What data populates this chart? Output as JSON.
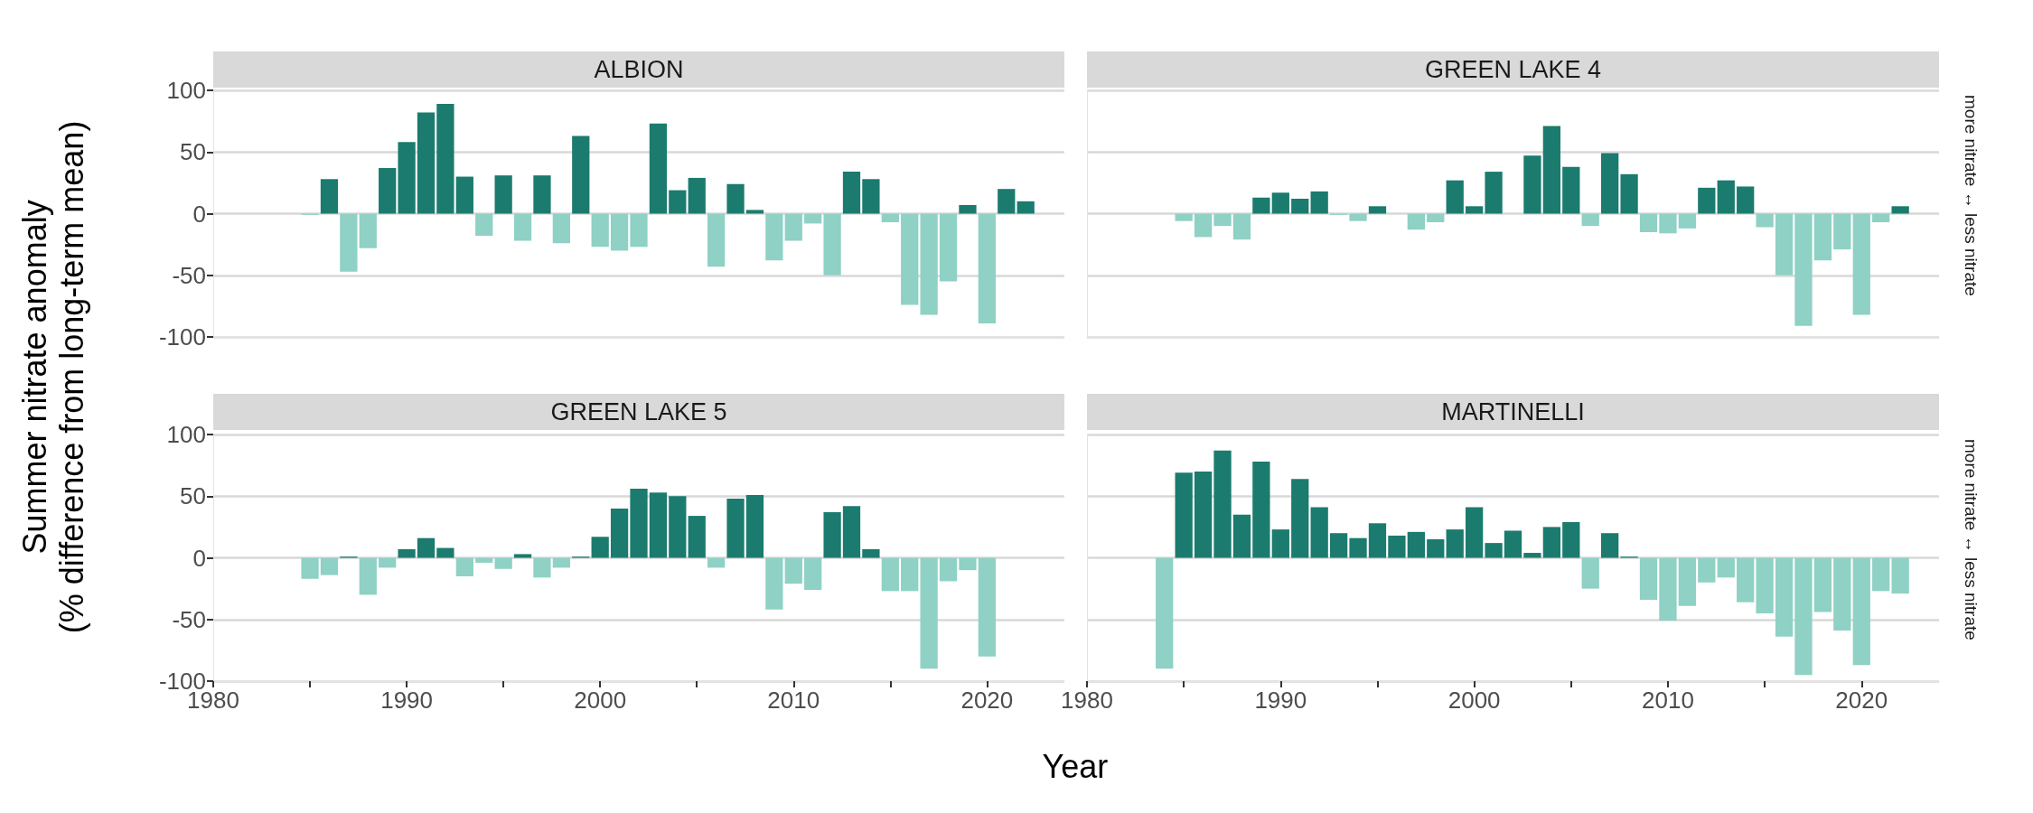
{
  "chart_data": [
    {
      "type": "bar",
      "title": "ALBION",
      "ylabel": "Summer nitrate anomaly\n(% difference from long-term mean)",
      "x": [
        1985,
        1986,
        1987,
        1988,
        1989,
        1990,
        1991,
        1992,
        1993,
        1994,
        1995,
        1996,
        1997,
        1998,
        1999,
        2000,
        2001,
        2002,
        2003,
        2004,
        2005,
        2006,
        2007,
        2008,
        2009,
        2010,
        2011,
        2012,
        2013,
        2014,
        2015,
        2016,
        2017,
        2018,
        2019,
        2020,
        2021,
        2022
      ],
      "values": [
        -1,
        28,
        -47,
        -28,
        37,
        58,
        82,
        89,
        30,
        -18,
        31,
        -22,
        31,
        -24,
        63,
        -27,
        -30,
        -27,
        73,
        19,
        29,
        -43,
        24,
        3,
        -38,
        -22,
        -8,
        -50,
        34,
        28,
        -7,
        -74,
        -82,
        -55,
        7,
        -89,
        20,
        10
      ],
      "colors": [
        "#8fd1c4",
        "#1b7b6e",
        "#8fd1c4",
        "#8fd1c4",
        "#1b7b6e",
        "#1b7b6e",
        "#1b7b6e",
        "#1b7b6e",
        "#1b7b6e",
        "#8fd1c4",
        "#1b7b6e",
        "#8fd1c4",
        "#1b7b6e",
        "#8fd1c4",
        "#1b7b6e",
        "#8fd1c4",
        "#8fd1c4",
        "#8fd1c4",
        "#1b7b6e",
        "#1b7b6e",
        "#1b7b6e",
        "#8fd1c4",
        "#1b7b6e",
        "#1b7b6e",
        "#8fd1c4",
        "#8fd1c4",
        "#8fd1c4",
        "#8fd1c4",
        "#1b7b6e",
        "#1b7b6e",
        "#8fd1c4",
        "#8fd1c4",
        "#8fd1c4",
        "#8fd1c4",
        "#1b7b6e",
        "#8fd1c4",
        "#1b7b6e",
        "#1b7b6e"
      ],
      "xlim": [
        1980,
        2024
      ],
      "xticks": [
        1980,
        1990,
        2000,
        2010,
        2020
      ],
      "ylim": [
        -100,
        100
      ],
      "yticks": [
        -100,
        -50,
        0,
        50,
        100
      ],
      "grid": "y",
      "tick_labels": "y"
    },
    {
      "type": "bar",
      "title": "GREEN LAKE 4",
      "annotations": [
        "more nitrate ↔ less nitrate"
      ],
      "x": [
        1985,
        1986,
        1987,
        1988,
        1989,
        1990,
        1991,
        1992,
        1993,
        1994,
        1995,
        1997,
        1998,
        1999,
        2000,
        2001,
        2003,
        2004,
        2005,
        2006,
        2007,
        2008,
        2009,
        2010,
        2011,
        2012,
        2013,
        2014,
        2015,
        2016,
        2017,
        2018,
        2019,
        2020,
        2021,
        2022
      ],
      "values": [
        -6,
        -19,
        -10,
        -21,
        13,
        17,
        12,
        18,
        -1,
        -6,
        6,
        -13,
        -7,
        27,
        6,
        34,
        47,
        71,
        38,
        -10,
        49,
        32,
        -15,
        -16,
        -12,
        21,
        27,
        22,
        -11,
        -50,
        -91,
        -38,
        -29,
        -82,
        -7,
        6
      ],
      "colors": [
        "#8fd1c4",
        "#8fd1c4",
        "#8fd1c4",
        "#8fd1c4",
        "#1b7b6e",
        "#1b7b6e",
        "#1b7b6e",
        "#1b7b6e",
        "#8fd1c4",
        "#8fd1c4",
        "#1b7b6e",
        "#8fd1c4",
        "#8fd1c4",
        "#1b7b6e",
        "#1b7b6e",
        "#1b7b6e",
        "#1b7b6e",
        "#1b7b6e",
        "#1b7b6e",
        "#8fd1c4",
        "#1b7b6e",
        "#1b7b6e",
        "#8fd1c4",
        "#8fd1c4",
        "#8fd1c4",
        "#1b7b6e",
        "#1b7b6e",
        "#1b7b6e",
        "#8fd1c4",
        "#8fd1c4",
        "#8fd1c4",
        "#8fd1c4",
        "#8fd1c4",
        "#8fd1c4",
        "#8fd1c4",
        "#1b7b6e"
      ],
      "xlim": [
        1980,
        2024
      ],
      "xticks": [
        1980,
        1990,
        2000,
        2010,
        2020
      ],
      "ylim": [
        -100,
        100
      ],
      "yticks": [
        -100,
        -50,
        0,
        50,
        100
      ],
      "grid": "y",
      "tick_labels": false
    },
    {
      "type": "bar",
      "title": "GREEN LAKE 5",
      "xlabel": "Year",
      "x": [
        1985,
        1986,
        1987,
        1988,
        1989,
        1990,
        1991,
        1992,
        1993,
        1994,
        1995,
        1996,
        1997,
        1998,
        1999,
        2000,
        2001,
        2002,
        2003,
        2004,
        2005,
        2006,
        2007,
        2008,
        2009,
        2010,
        2011,
        2012,
        2013,
        2014,
        2015,
        2016,
        2017,
        2018,
        2019,
        2020
      ],
      "values": [
        -17,
        -14,
        1,
        -30,
        -8,
        7,
        16,
        8,
        -15,
        -4,
        -9,
        3,
        -16,
        -8,
        1,
        17,
        40,
        56,
        53,
        50,
        34,
        -8,
        48,
        51,
        -42,
        -21,
        -26,
        37,
        42,
        7,
        -27,
        -27,
        -90,
        -19,
        -10,
        -80
      ],
      "colors": [
        "#8fd1c4",
        "#8fd1c4",
        "#1b7b6e",
        "#8fd1c4",
        "#8fd1c4",
        "#1b7b6e",
        "#1b7b6e",
        "#1b7b6e",
        "#8fd1c4",
        "#8fd1c4",
        "#8fd1c4",
        "#1b7b6e",
        "#8fd1c4",
        "#8fd1c4",
        "#1b7b6e",
        "#1b7b6e",
        "#1b7b6e",
        "#1b7b6e",
        "#1b7b6e",
        "#1b7b6e",
        "#1b7b6e",
        "#8fd1c4",
        "#1b7b6e",
        "#1b7b6e",
        "#8fd1c4",
        "#8fd1c4",
        "#8fd1c4",
        "#1b7b6e",
        "#1b7b6e",
        "#1b7b6e",
        "#8fd1c4",
        "#8fd1c4",
        "#8fd1c4",
        "#8fd1c4",
        "#8fd1c4",
        "#8fd1c4"
      ],
      "xlim": [
        1980,
        2024
      ],
      "xticks": [
        1980,
        {
          "value": 1985,
          "label": null
        },
        1990,
        {
          "value": 1995,
          "label": null
        },
        2000,
        {
          "value": 2005,
          "label": null
        },
        2010,
        {
          "value": 2015,
          "label": null
        },
        2020
      ],
      "ylim": [
        -100,
        100
      ],
      "yticks": [
        -100,
        -50,
        0,
        50,
        100
      ],
      "grid": "y"
    },
    {
      "type": "bar",
      "title": "MARTINELLI",
      "annotations": [
        "more nitrate ↔ less nitrate"
      ],
      "x": [
        1984,
        1985,
        1986,
        1987,
        1988,
        1989,
        1990,
        1991,
        1992,
        1993,
        1994,
        1995,
        1996,
        1997,
        1998,
        1999,
        2000,
        2001,
        2002,
        2003,
        2004,
        2005,
        2006,
        2007,
        2008,
        2009,
        2010,
        2011,
        2012,
        2013,
        2014,
        2015,
        2016,
        2017,
        2018,
        2019,
        2020,
        2021,
        2022
      ],
      "values": [
        -90,
        69,
        70,
        87,
        35,
        78,
        23,
        64,
        41,
        20,
        16,
        28,
        18,
        21,
        15,
        23,
        41,
        12,
        22,
        4,
        25,
        29,
        -25,
        20,
        1,
        -34,
        -51,
        -39,
        -20,
        -16,
        -36,
        -45,
        -64,
        -95,
        -44,
        -59,
        -87,
        -27,
        -29
      ],
      "colors": [
        "#8fd1c4",
        "#1b7b6e",
        "#1b7b6e",
        "#1b7b6e",
        "#1b7b6e",
        "#1b7b6e",
        "#1b7b6e",
        "#1b7b6e",
        "#1b7b6e",
        "#1b7b6e",
        "#1b7b6e",
        "#1b7b6e",
        "#1b7b6e",
        "#1b7b6e",
        "#1b7b6e",
        "#1b7b6e",
        "#1b7b6e",
        "#1b7b6e",
        "#1b7b6e",
        "#1b7b6e",
        "#1b7b6e",
        "#1b7b6e",
        "#8fd1c4",
        "#1b7b6e",
        "#1b7b6e",
        "#8fd1c4",
        "#8fd1c4",
        "#8fd1c4",
        "#8fd1c4",
        "#8fd1c4",
        "#8fd1c4",
        "#8fd1c4",
        "#8fd1c4",
        "#8fd1c4",
        "#8fd1c4",
        "#8fd1c4",
        "#8fd1c4",
        "#8fd1c4",
        "#8fd1c4"
      ],
      "xlim": [
        1980,
        2024
      ],
      "xticks": [
        1980,
        {
          "value": 1985,
          "label": null
        },
        1990,
        {
          "value": 1995,
          "label": null
        },
        2000,
        {
          "value": 2005,
          "label": null
        },
        2010,
        {
          "value": 2015,
          "label": null
        },
        2020
      ],
      "ylim": [
        -100,
        100
      ],
      "yticks": [
        -100,
        -50,
        0,
        50,
        100
      ],
      "grid": "y",
      "tick_labels": "x"
    }
  ]
}
